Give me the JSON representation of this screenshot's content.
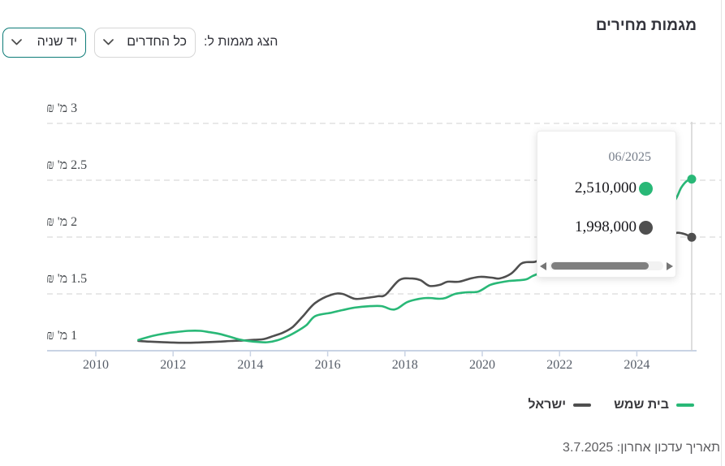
{
  "header": {
    "title": "מגמות מחירים"
  },
  "controls": {
    "label": "הצג מגמות ל:",
    "rooms_filter": {
      "value": "כל החדרים"
    },
    "condition_filter": {
      "value": "יד שניה"
    }
  },
  "chart_data": {
    "type": "line",
    "title": "מגמות מחירים",
    "grid": "dashed-horizontal",
    "x_axis": {
      "ticks": [
        2010,
        2012,
        2014,
        2016,
        2018,
        2020,
        2022,
        2024
      ],
      "min": 2008.8,
      "max": 2026.2
    },
    "y_axis": {
      "unit": "מ' ₪",
      "min": 1,
      "max": 3.15,
      "grid_values": [
        3,
        2.5,
        2,
        1.5
      ],
      "labels": [
        {
          "value": 3,
          "label": "3 מ' ₪"
        },
        {
          "value": 2.5,
          "label": "2.5 מ' ₪"
        },
        {
          "value": 2,
          "label": "2 מ' ₪"
        },
        {
          "value": 1.5,
          "label": "1.5 מ' ₪"
        },
        {
          "value": 1,
          "label": "1 מ' ₪"
        }
      ]
    },
    "series": [
      {
        "name": "בית שמש",
        "color": "#29b877",
        "points": [
          [
            2011.1,
            1.095
          ],
          [
            2011.35,
            1.12
          ],
          [
            2011.6,
            1.14
          ],
          [
            2011.85,
            1.155
          ],
          [
            2012.1,
            1.165
          ],
          [
            2012.4,
            1.175
          ],
          [
            2012.7,
            1.175
          ],
          [
            2012.95,
            1.163
          ],
          [
            2013.2,
            1.148
          ],
          [
            2013.45,
            1.125
          ],
          [
            2013.7,
            1.1
          ],
          [
            2013.95,
            1.085
          ],
          [
            2014.2,
            1.077
          ],
          [
            2014.45,
            1.075
          ],
          [
            2014.7,
            1.092
          ],
          [
            2014.95,
            1.125
          ],
          [
            2015.2,
            1.17
          ],
          [
            2015.45,
            1.225
          ],
          [
            2015.68,
            1.305
          ],
          [
            2016.1,
            1.335
          ],
          [
            2016.38,
            1.357
          ],
          [
            2016.7,
            1.379
          ],
          [
            2017.1,
            1.392
          ],
          [
            2017.4,
            1.392
          ],
          [
            2017.64,
            1.364
          ],
          [
            2017.8,
            1.371
          ],
          [
            2018.06,
            1.428
          ],
          [
            2018.36,
            1.456
          ],
          [
            2018.6,
            1.464
          ],
          [
            2018.9,
            1.457
          ],
          [
            2019.05,
            1.464
          ],
          [
            2019.3,
            1.5
          ],
          [
            2019.6,
            1.514
          ],
          [
            2019.9,
            1.521
          ],
          [
            2020.2,
            1.578
          ],
          [
            2020.45,
            1.6
          ],
          [
            2020.7,
            1.614
          ],
          [
            2020.95,
            1.62
          ],
          [
            2021.15,
            1.629
          ],
          [
            2021.3,
            1.657
          ],
          [
            2021.6,
            1.7
          ],
          [
            2021.9,
            1.755
          ],
          [
            2022.2,
            1.812
          ],
          [
            2022.5,
            1.868
          ],
          [
            2022.8,
            1.925
          ],
          [
            2023.1,
            1.978
          ],
          [
            2023.4,
            2.022
          ],
          [
            2023.7,
            2.052
          ],
          [
            2024.0,
            2.088
          ],
          [
            2024.3,
            2.135
          ],
          [
            2024.6,
            2.2
          ],
          [
            2024.8,
            2.26
          ],
          [
            2025.0,
            2.33
          ],
          [
            2025.15,
            2.435
          ],
          [
            2025.3,
            2.495
          ],
          [
            2025.42,
            2.51
          ]
        ]
      },
      {
        "name": "ישראל",
        "color": "#4f4f4f",
        "points": [
          [
            2011.1,
            1.086
          ],
          [
            2011.4,
            1.08
          ],
          [
            2011.7,
            1.076
          ],
          [
            2012.0,
            1.072
          ],
          [
            2012.3,
            1.07
          ],
          [
            2012.6,
            1.072
          ],
          [
            2012.9,
            1.076
          ],
          [
            2013.2,
            1.08
          ],
          [
            2013.5,
            1.086
          ],
          [
            2013.8,
            1.09
          ],
          [
            2014.1,
            1.096
          ],
          [
            2014.35,
            1.103
          ],
          [
            2014.6,
            1.13
          ],
          [
            2014.85,
            1.16
          ],
          [
            2015.1,
            1.21
          ],
          [
            2015.35,
            1.3
          ],
          [
            2015.68,
            1.421
          ],
          [
            2016.1,
            1.493
          ],
          [
            2016.38,
            1.5
          ],
          [
            2016.7,
            1.457
          ],
          [
            2017.0,
            1.464
          ],
          [
            2017.3,
            1.479
          ],
          [
            2017.5,
            1.493
          ],
          [
            2017.85,
            1.621
          ],
          [
            2018.15,
            1.636
          ],
          [
            2018.4,
            1.621
          ],
          [
            2018.63,
            1.571
          ],
          [
            2018.9,
            1.579
          ],
          [
            2019.1,
            1.607
          ],
          [
            2019.4,
            1.607
          ],
          [
            2019.7,
            1.636
          ],
          [
            2019.95,
            1.65
          ],
          [
            2020.25,
            1.643
          ],
          [
            2020.45,
            1.636
          ],
          [
            2020.75,
            1.679
          ],
          [
            2021.0,
            1.764
          ],
          [
            2021.15,
            1.779
          ],
          [
            2021.4,
            1.786
          ],
          [
            2021.7,
            1.85
          ],
          [
            2022.0,
            1.92
          ],
          [
            2022.3,
            1.97
          ],
          [
            2022.6,
            2.005
          ],
          [
            2022.9,
            2.03
          ],
          [
            2023.2,
            2.02
          ],
          [
            2023.5,
            2.0
          ],
          [
            2023.8,
            1.98
          ],
          [
            2024.1,
            1.968
          ],
          [
            2024.4,
            1.975
          ],
          [
            2024.7,
            1.995
          ],
          [
            2024.9,
            2.02
          ],
          [
            2025.05,
            2.038
          ],
          [
            2025.25,
            2.025
          ],
          [
            2025.42,
            1.998
          ]
        ]
      }
    ],
    "hover": {
      "x": 2025.42,
      "date": "06/2025"
    },
    "legend_position": "bottom-right"
  },
  "tooltip": {
    "date": "06/2025",
    "rows": [
      {
        "value": "2,510,000",
        "color": "#29b877"
      },
      {
        "value": "1,998,000",
        "color": "#4f4f4f"
      }
    ]
  },
  "legend": {
    "items": [
      {
        "label": "בית שמש",
        "color": "#29b877"
      },
      {
        "label": "ישראל",
        "color": "#4f4f4f"
      }
    ]
  },
  "footer": {
    "last_update": "תאריך עדכון אחרון: 3.7.2025"
  },
  "colors": {
    "accent_green": "#29b877",
    "series_dark": "#4f4f4f",
    "teal_border": "#0e7c78",
    "gridline": "#dadada",
    "axis": "#c9d3e4",
    "crosshair": "#d2d2d2"
  }
}
